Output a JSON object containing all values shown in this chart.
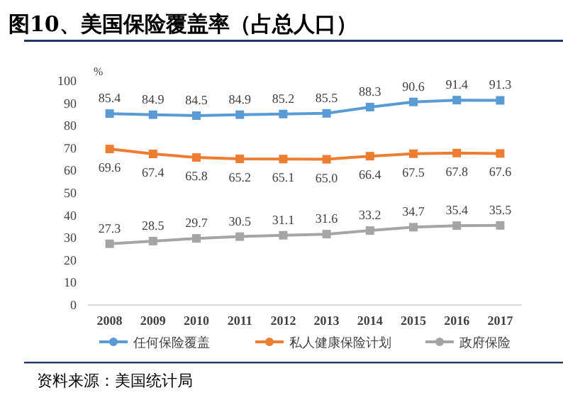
{
  "chart_data": {
    "type": "line",
    "title": "图10、美国保险覆盖率（占总人口）",
    "ylabel": "%",
    "categories": [
      "2008",
      "2009",
      "2010",
      "2011",
      "2012",
      "2013",
      "2014",
      "2015",
      "2016",
      "2017"
    ],
    "series": [
      {
        "name": "任何保险覆盖",
        "color": "#5b9bd5",
        "values": [
          85.4,
          84.9,
          84.5,
          84.9,
          85.2,
          85.5,
          88.3,
          90.6,
          91.4,
          91.3
        ],
        "value_labels": [
          "85.4",
          "84.9",
          "84.5",
          "84.9",
          "85.2",
          "85.5",
          "88.3",
          "90.6",
          "91.4",
          "91.3"
        ]
      },
      {
        "name": "私人健康保险计划",
        "color": "#ed7d31",
        "values": [
          69.6,
          67.4,
          65.8,
          65.2,
          65.1,
          65.0,
          66.4,
          67.5,
          67.8,
          67.6
        ],
        "value_labels": [
          "69.6",
          "67.4",
          "65.8",
          "65.2",
          "65.1",
          "65.0",
          "66.4",
          "67.5",
          "67.8",
          "67.6"
        ]
      },
      {
        "name": "政府保险",
        "color": "#a5a5a5",
        "values": [
          27.3,
          28.5,
          29.7,
          30.5,
          31.1,
          31.6,
          33.2,
          34.7,
          35.4,
          35.5
        ],
        "value_labels": [
          "27.3",
          "28.5",
          "29.7",
          "30.5",
          "31.1",
          "31.6",
          "33.2",
          "34.7",
          "35.4",
          "35.5"
        ]
      }
    ],
    "ylim": [
      0,
      100
    ],
    "yticks": [
      0,
      10,
      20,
      30,
      40,
      50,
      60,
      70,
      80,
      90,
      100
    ],
    "grid": false,
    "legend": "bottom",
    "marker": "square",
    "line_style": "solid",
    "annotations": [
      "资料来源：美国统计局"
    ]
  }
}
